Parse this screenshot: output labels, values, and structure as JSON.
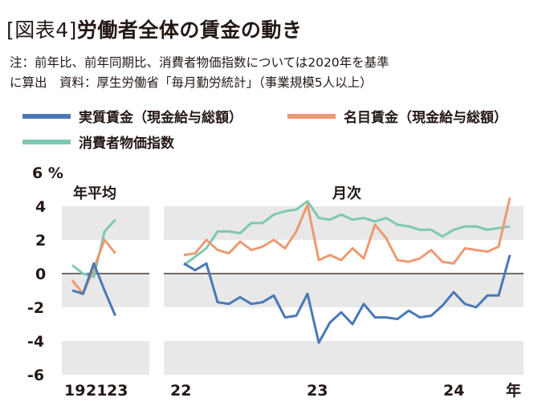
{
  "header": {
    "label": "[図表4]",
    "title": "労働者全体の賃金の動き",
    "note_line1": "注：前年比、前年同期比、消費者物価指数については2020年を基準",
    "note_line2": "に算出　資料：厚生労働省「毎月勤労統計」（事業規模5人以上）"
  },
  "legend": [
    {
      "label": "実質賃金（現金給与総額）",
      "color": "#4a78b8"
    },
    {
      "label": "名目賃金（現金給与総額）",
      "color": "#ec9a72"
    },
    {
      "label": "消費者物価指数",
      "color": "#7ec8b4"
    }
  ],
  "chart_data": {
    "type": "line",
    "y_unit": "%",
    "ylim": [
      -7,
      6
    ],
    "y_ticks": [
      6,
      4,
      2,
      0,
      -2,
      -4,
      -6
    ],
    "band_color": "#e8e8e8",
    "panels": [
      {
        "label": "年平均",
        "x_ticks": [
          "19",
          "21",
          "23"
        ],
        "x": [
          2019,
          2020,
          2021,
          2022,
          2023
        ],
        "series": [
          {
            "key": "real",
            "values": [
              -1.0,
              -1.2,
              0.6,
              -1.0,
              -2.5
            ]
          },
          {
            "key": "nominal",
            "values": [
              -0.4,
              -1.2,
              0.3,
              2.0,
              1.2
            ]
          },
          {
            "key": "cpi",
            "values": [
              0.5,
              0.0,
              -0.2,
              2.5,
              3.2
            ]
          }
        ]
      },
      {
        "label": "月次",
        "x_ticks": [
          "22",
          "23",
          "24"
        ],
        "x_tick_index": [
          0,
          12,
          24
        ],
        "x_end_label": "年",
        "series": [
          {
            "key": "real",
            "values": [
              0.6,
              0.2,
              0.6,
              -1.7,
              -1.8,
              -1.4,
              -1.8,
              -1.7,
              -1.3,
              -2.6,
              -2.5,
              -1.2,
              -4.1,
              -2.9,
              -2.3,
              -3.0,
              -1.8,
              -2.6,
              -2.6,
              -2.7,
              -2.2,
              -2.6,
              -2.5,
              -1.9,
              -1.1,
              -1.8,
              -2.0,
              -1.3,
              -1.3,
              1.1
            ]
          },
          {
            "key": "nominal",
            "values": [
              1.1,
              1.2,
              2.0,
              1.4,
              1.2,
              1.9,
              1.4,
              1.6,
              2.0,
              1.5,
              2.5,
              4.1,
              0.8,
              1.1,
              0.8,
              1.5,
              0.9,
              2.9,
              2.1,
              0.8,
              0.7,
              0.9,
              1.4,
              0.7,
              0.6,
              1.5,
              1.4,
              1.3,
              1.6,
              4.5
            ]
          },
          {
            "key": "cpi",
            "values": [
              0.5,
              1.0,
              1.5,
              2.5,
              2.5,
              2.4,
              3.0,
              3.0,
              3.5,
              3.7,
              3.8,
              4.3,
              3.3,
              3.2,
              3.5,
              3.2,
              3.3,
              3.1,
              3.3,
              2.9,
              2.8,
              2.6,
              2.6,
              2.2,
              2.6,
              2.8,
              2.8,
              2.6,
              2.7,
              2.8
            ]
          }
        ]
      }
    ]
  }
}
